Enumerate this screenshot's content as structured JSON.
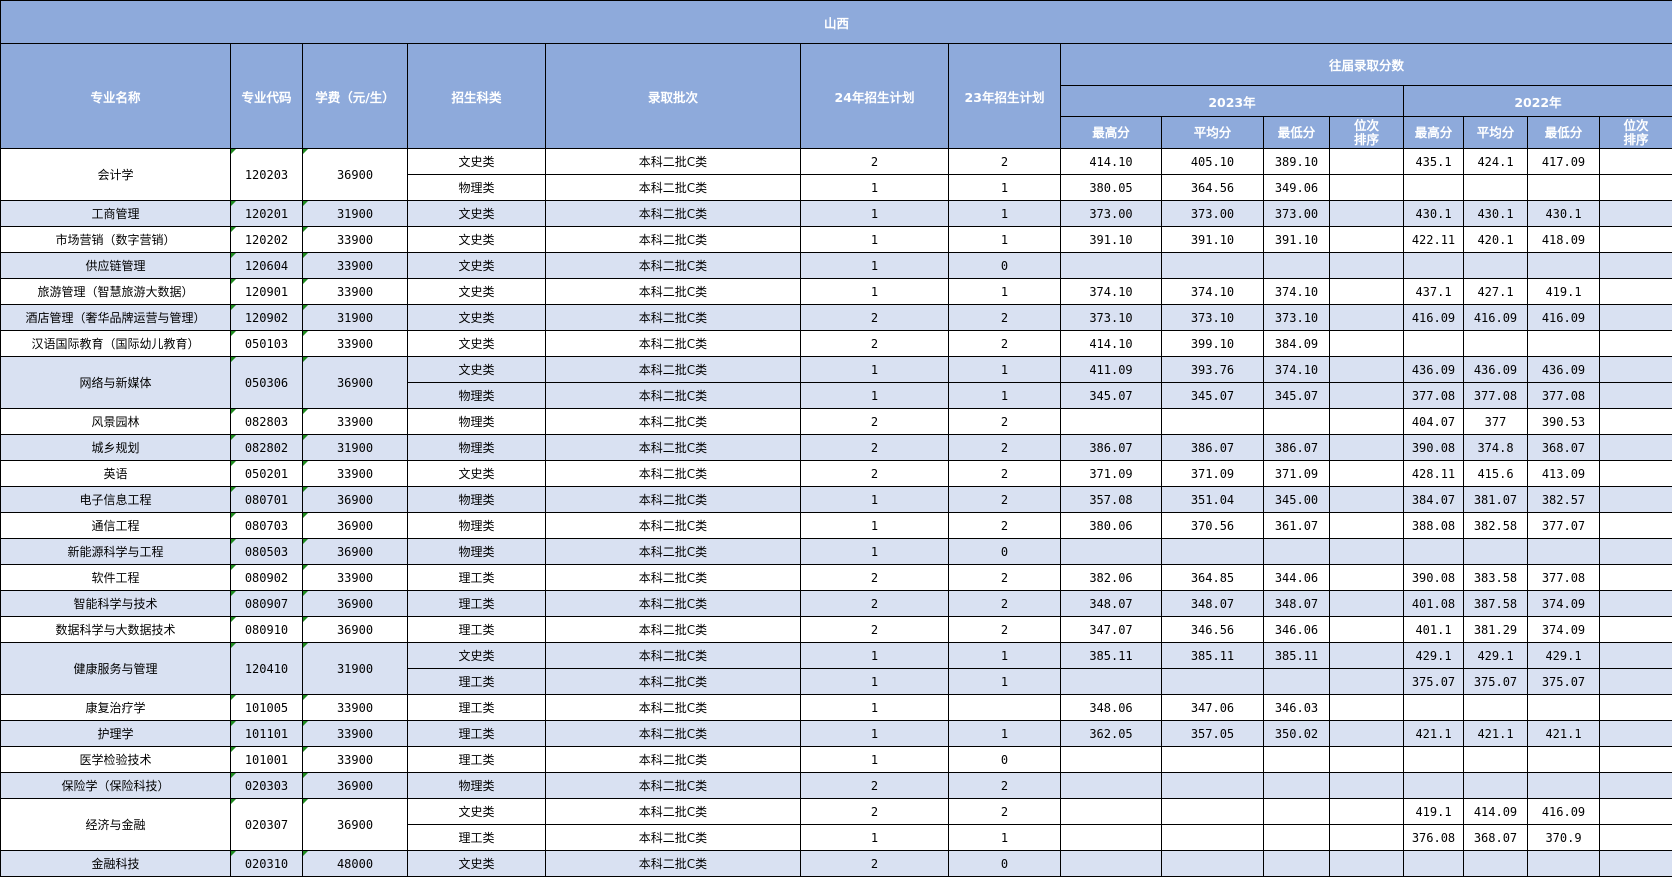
{
  "title": "山西",
  "headers": {
    "major": "专业名称",
    "code": "专业代码",
    "fee": "学费（元/生）",
    "subject": "招生科类",
    "batch": "录取批次",
    "plan24": "24年招生计划",
    "plan23": "23年招生计划",
    "history": "往届录取分数",
    "y2023": "2023年",
    "y2022": "2022年",
    "max": "最高分",
    "avg": "平均分",
    "min": "最低分",
    "rank_l1": "位次",
    "rank_l2": "排序"
  },
  "colors": {
    "header_bg": "#8eaadb",
    "alt_row_bg": "#d9e1f2",
    "marker": "#1e8a1e"
  },
  "majors": [
    {
      "name": "会计学",
      "code": "120203",
      "fee": "36900",
      "rows": [
        {
          "subject": "文史类",
          "batch": "本科二批C类",
          "plan24": "2",
          "plan23": "2",
          "s23": [
            "414.10",
            "405.10",
            "389.10",
            ""
          ],
          "s22": [
            "435.1",
            "424.1",
            "417.09",
            ""
          ]
        },
        {
          "subject": "物理类",
          "batch": "本科二批C类",
          "plan24": "1",
          "plan23": "1",
          "s23": [
            "380.05",
            "364.56",
            "349.06",
            ""
          ],
          "s22": [
            "",
            "",
            "",
            ""
          ]
        }
      ]
    },
    {
      "name": "工商管理",
      "code": "120201",
      "fee": "31900",
      "rows": [
        {
          "subject": "文史类",
          "batch": "本科二批C类",
          "plan24": "1",
          "plan23": "1",
          "s23": [
            "373.00",
            "373.00",
            "373.00",
            ""
          ],
          "s22": [
            "430.1",
            "430.1",
            "430.1",
            ""
          ]
        }
      ]
    },
    {
      "name": "市场营销（数字营销）",
      "code": "120202",
      "fee": "33900",
      "rows": [
        {
          "subject": "文史类",
          "batch": "本科二批C类",
          "plan24": "1",
          "plan23": "1",
          "s23": [
            "391.10",
            "391.10",
            "391.10",
            ""
          ],
          "s22": [
            "422.11",
            "420.1",
            "418.09",
            ""
          ]
        }
      ]
    },
    {
      "name": "供应链管理",
      "code": "120604",
      "fee": "33900",
      "rows": [
        {
          "subject": "文史类",
          "batch": "本科二批C类",
          "plan24": "1",
          "plan23": "0",
          "s23": [
            "",
            "",
            "",
            ""
          ],
          "s22": [
            "",
            "",
            "",
            ""
          ]
        }
      ]
    },
    {
      "name": "旅游管理（智慧旅游大数据）",
      "code": "120901",
      "fee": "33900",
      "rows": [
        {
          "subject": "文史类",
          "batch": "本科二批C类",
          "plan24": "1",
          "plan23": "1",
          "s23": [
            "374.10",
            "374.10",
            "374.10",
            ""
          ],
          "s22": [
            "437.1",
            "427.1",
            "419.1",
            ""
          ]
        }
      ]
    },
    {
      "name": "酒店管理（奢华品牌运营与管理）",
      "code": "120902",
      "fee": "31900",
      "rows": [
        {
          "subject": "文史类",
          "batch": "本科二批C类",
          "plan24": "2",
          "plan23": "2",
          "s23": [
            "373.10",
            "373.10",
            "373.10",
            ""
          ],
          "s22": [
            "416.09",
            "416.09",
            "416.09",
            ""
          ]
        }
      ]
    },
    {
      "name": "汉语国际教育（国际幼儿教育）",
      "code": "050103",
      "fee": "33900",
      "rows": [
        {
          "subject": "文史类",
          "batch": "本科二批C类",
          "plan24": "2",
          "plan23": "2",
          "s23": [
            "414.10",
            "399.10",
            "384.09",
            ""
          ],
          "s22": [
            "",
            "",
            "",
            ""
          ]
        }
      ]
    },
    {
      "name": "网络与新媒体",
      "code": "050306",
      "fee": "36900",
      "rows": [
        {
          "subject": "文史类",
          "batch": "本科二批C类",
          "plan24": "1",
          "plan23": "1",
          "s23": [
            "411.09",
            "393.76",
            "374.10",
            ""
          ],
          "s22": [
            "436.09",
            "436.09",
            "436.09",
            ""
          ]
        },
        {
          "subject": "物理类",
          "batch": "本科二批C类",
          "plan24": "1",
          "plan23": "1",
          "s23": [
            "345.07",
            "345.07",
            "345.07",
            ""
          ],
          "s22": [
            "377.08",
            "377.08",
            "377.08",
            ""
          ]
        }
      ]
    },
    {
      "name": "风景园林",
      "code": "082803",
      "fee": "33900",
      "rows": [
        {
          "subject": "物理类",
          "batch": "本科二批C类",
          "plan24": "2",
          "plan23": "2",
          "s23": [
            "",
            "",
            "",
            ""
          ],
          "s22": [
            "404.07",
            "377",
            "390.53",
            ""
          ]
        }
      ]
    },
    {
      "name": "城乡规划",
      "code": "082802",
      "fee": "31900",
      "rows": [
        {
          "subject": "物理类",
          "batch": "本科二批C类",
          "plan24": "2",
          "plan23": "2",
          "s23": [
            "386.07",
            "386.07",
            "386.07",
            ""
          ],
          "s22": [
            "390.08",
            "374.8",
            "368.07",
            ""
          ]
        }
      ]
    },
    {
      "name": "英语",
      "code": "050201",
      "fee": "33900",
      "rows": [
        {
          "subject": "文史类",
          "batch": "本科二批C类",
          "plan24": "2",
          "plan23": "2",
          "s23": [
            "371.09",
            "371.09",
            "371.09",
            ""
          ],
          "s22": [
            "428.11",
            "415.6",
            "413.09",
            ""
          ]
        }
      ]
    },
    {
      "name": "电子信息工程",
      "code": "080701",
      "fee": "36900",
      "rows": [
        {
          "subject": "物理类",
          "batch": "本科二批C类",
          "plan24": "1",
          "plan23": "2",
          "s23": [
            "357.08",
            "351.04",
            "345.00",
            ""
          ],
          "s22": [
            "384.07",
            "381.07",
            "382.57",
            ""
          ]
        }
      ]
    },
    {
      "name": "通信工程",
      "code": "080703",
      "fee": "36900",
      "rows": [
        {
          "subject": "物理类",
          "batch": "本科二批C类",
          "plan24": "1",
          "plan23": "2",
          "s23": [
            "380.06",
            "370.56",
            "361.07",
            ""
          ],
          "s22": [
            "388.08",
            "382.58",
            "377.07",
            ""
          ]
        }
      ]
    },
    {
      "name": "新能源科学与工程",
      "code": "080503",
      "fee": "36900",
      "rows": [
        {
          "subject": "物理类",
          "batch": "本科二批C类",
          "plan24": "1",
          "plan23": "0",
          "s23": [
            "",
            "",
            "",
            ""
          ],
          "s22": [
            "",
            "",
            "",
            ""
          ]
        }
      ]
    },
    {
      "name": "软件工程",
      "code": "080902",
      "fee": "33900",
      "rows": [
        {
          "subject": "理工类",
          "batch": "本科二批C类",
          "plan24": "2",
          "plan23": "2",
          "s23": [
            "382.06",
            "364.85",
            "344.06",
            ""
          ],
          "s22": [
            "390.08",
            "383.58",
            "377.08",
            ""
          ]
        }
      ]
    },
    {
      "name": "智能科学与技术",
      "code": "080907",
      "fee": "36900",
      "rows": [
        {
          "subject": "理工类",
          "batch": "本科二批C类",
          "plan24": "2",
          "plan23": "2",
          "s23": [
            "348.07",
            "348.07",
            "348.07",
            ""
          ],
          "s22": [
            "401.08",
            "387.58",
            "374.09",
            ""
          ]
        }
      ]
    },
    {
      "name": "数据科学与大数据技术",
      "code": "080910",
      "fee": "36900",
      "rows": [
        {
          "subject": "理工类",
          "batch": "本科二批C类",
          "plan24": "2",
          "plan23": "2",
          "s23": [
            "347.07",
            "346.56",
            "346.06",
            ""
          ],
          "s22": [
            "401.1",
            "381.29",
            "374.09",
            ""
          ]
        }
      ]
    },
    {
      "name": "健康服务与管理",
      "code": "120410",
      "fee": "31900",
      "rows": [
        {
          "subject": "文史类",
          "batch": "本科二批C类",
          "plan24": "1",
          "plan23": "1",
          "s23": [
            "385.11",
            "385.11",
            "385.11",
            ""
          ],
          "s22": [
            "429.1",
            "429.1",
            "429.1",
            ""
          ]
        },
        {
          "subject": "理工类",
          "batch": "本科二批C类",
          "plan24": "1",
          "plan23": "1",
          "s23": [
            "",
            "",
            "",
            ""
          ],
          "s22": [
            "375.07",
            "375.07",
            "375.07",
            ""
          ]
        }
      ]
    },
    {
      "name": "康复治疗学",
      "code": "101005",
      "fee": "33900",
      "rows": [
        {
          "subject": "理工类",
          "batch": "本科二批C类",
          "plan24": "1",
          "plan23": "",
          "s23": [
            "348.06",
            "347.06",
            "346.03",
            ""
          ],
          "s22": [
            "",
            "",
            "",
            ""
          ]
        }
      ]
    },
    {
      "name": "护理学",
      "code": "101101",
      "fee": "33900",
      "rows": [
        {
          "subject": "理工类",
          "batch": "本科二批C类",
          "plan24": "1",
          "plan23": "1",
          "s23": [
            "362.05",
            "357.05",
            "350.02",
            ""
          ],
          "s22": [
            "421.1",
            "421.1",
            "421.1",
            ""
          ]
        }
      ]
    },
    {
      "name": "医学检验技术",
      "code": "101001",
      "fee": "33900",
      "rows": [
        {
          "subject": "理工类",
          "batch": "本科二批C类",
          "plan24": "1",
          "plan23": "0",
          "s23": [
            "",
            "",
            "",
            ""
          ],
          "s22": [
            "",
            "",
            "",
            ""
          ]
        }
      ]
    },
    {
      "name": "保险学（保险科技）",
      "code": "020303",
      "fee": "36900",
      "rows": [
        {
          "subject": "物理类",
          "batch": "本科二批C类",
          "plan24": "2",
          "plan23": "2",
          "s23": [
            "",
            "",
            "",
            ""
          ],
          "s22": [
            "",
            "",
            "",
            ""
          ]
        }
      ]
    },
    {
      "name": "经济与金融",
      "code": "020307",
      "fee": "36900",
      "rows": [
        {
          "subject": "文史类",
          "batch": "本科二批C类",
          "plan24": "2",
          "plan23": "2",
          "s23": [
            "",
            "",
            "",
            ""
          ],
          "s22": [
            "419.1",
            "414.09",
            "416.09",
            ""
          ]
        },
        {
          "subject": "理工类",
          "batch": "本科二批C类",
          "plan24": "1",
          "plan23": "1",
          "s23": [
            "",
            "",
            "",
            ""
          ],
          "s22": [
            "376.08",
            "368.07",
            "370.9",
            ""
          ]
        }
      ]
    },
    {
      "name": "金融科技",
      "code": "020310",
      "fee": "48000",
      "rows": [
        {
          "subject": "文史类",
          "batch": "本科二批C类",
          "plan24": "2",
          "plan23": "0",
          "s23": [
            "",
            "",
            "",
            ""
          ],
          "s22": [
            "",
            "",
            "",
            ""
          ]
        }
      ]
    }
  ]
}
